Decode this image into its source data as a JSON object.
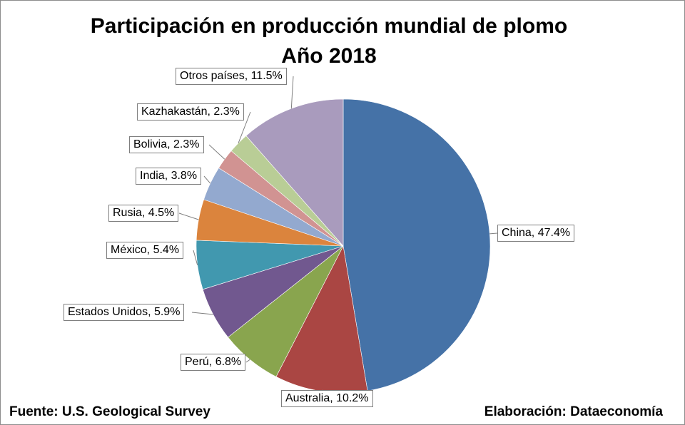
{
  "chart_data": {
    "type": "pie",
    "title": "Participación en producción mundial de plomo",
    "subtitle": "Año 2018",
    "slices": [
      {
        "label": "China",
        "value": 47.4,
        "text": "China, 47.4%",
        "color": "#4572a7"
      },
      {
        "label": "Australia",
        "value": 10.2,
        "text": "Australia, 10.2%",
        "color": "#aa4643"
      },
      {
        "label": "Perú",
        "value": 6.8,
        "text": "Perú, 6.8%",
        "color": "#89a54e"
      },
      {
        "label": "Estados Unidos",
        "value": 5.9,
        "text": "Estados Unidos, 5.9%",
        "color": "#71588f"
      },
      {
        "label": "México",
        "value": 5.4,
        "text": "México, 5.4%",
        "color": "#4198af"
      },
      {
        "label": "Rusia",
        "value": 4.5,
        "text": "Rusia, 4.5%",
        "color": "#db843d"
      },
      {
        "label": "India",
        "value": 3.8,
        "text": "India, 3.8%",
        "color": "#93a9cf"
      },
      {
        "label": "Bolivia",
        "value": 2.3,
        "text": "Bolivia, 2.3%",
        "color": "#d19392"
      },
      {
        "label": "Kazhakastán",
        "value": 2.3,
        "text": "Kazhakastán, 2.3%",
        "color": "#b9cd96"
      },
      {
        "label": "Otros países",
        "value": 11.5,
        "text": "Otros países, 11.5%",
        "color": "#a99bbd"
      }
    ]
  },
  "footer": {
    "source": "Fuente: U.S. Geological Survey",
    "credit": "Elaboración: Dataeconomía"
  }
}
